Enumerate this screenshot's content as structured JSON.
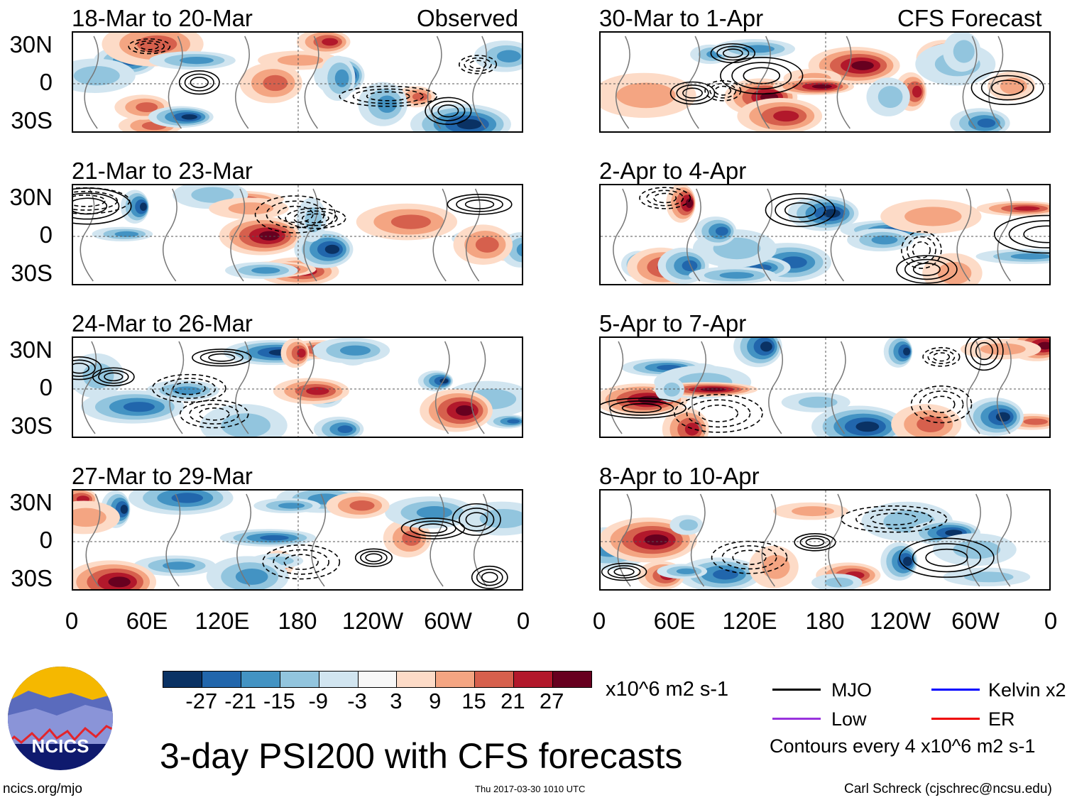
{
  "observed_label": "Observed",
  "forecast_label": "CFS Forecast",
  "observed_panels": [
    {
      "title": "18-Mar to 20-Mar"
    },
    {
      "title": "21-Mar to 23-Mar"
    },
    {
      "title": "24-Mar to 26-Mar"
    },
    {
      "title": "27-Mar to 29-Mar"
    }
  ],
  "forecast_panels": [
    {
      "title": "30-Mar to 1-Apr"
    },
    {
      "title": "2-Apr to 4-Apr"
    },
    {
      "title": "5-Apr to 7-Apr"
    },
    {
      "title": "8-Apr to 10-Apr"
    }
  ],
  "lat_labels": [
    "30N",
    "0",
    "30S"
  ],
  "lon_labels": [
    "0",
    "60E",
    "120E",
    "180",
    "120W",
    "60W",
    "0"
  ],
  "colorbar": {
    "colors": [
      "#0a3264",
      "#2166ac",
      "#4393c3",
      "#92c5de",
      "#d1e5f0",
      "#f7f7f7",
      "#fddbc7",
      "#f4a582",
      "#d6604d",
      "#b2182b",
      "#67001f"
    ],
    "labels": [
      "-27",
      "-21",
      "-15",
      "-9",
      "-3",
      "3",
      "9",
      "15",
      "21",
      "27"
    ],
    "units": "x10^6 m2 s-1"
  },
  "legend": {
    "items": [
      {
        "label": "MJO",
        "color": "#000000"
      },
      {
        "label": "Kelvin x2",
        "color": "#0000ff"
      },
      {
        "label": "Low",
        "color": "#9933dd"
      },
      {
        "label": "ER",
        "color": "#ee0000"
      }
    ],
    "contours_note": "Contours every 4 x10^6 m2 s-1"
  },
  "logo_text": "NCICS",
  "main_title": "3-day PSI200 with CFS forecasts",
  "footer": {
    "url": "ncics.org/mjo",
    "timestamp": "Thu 2017-03-30 1010 UTC",
    "author": "Carl Schreck (cjschrec@ncsu.edu)"
  }
}
